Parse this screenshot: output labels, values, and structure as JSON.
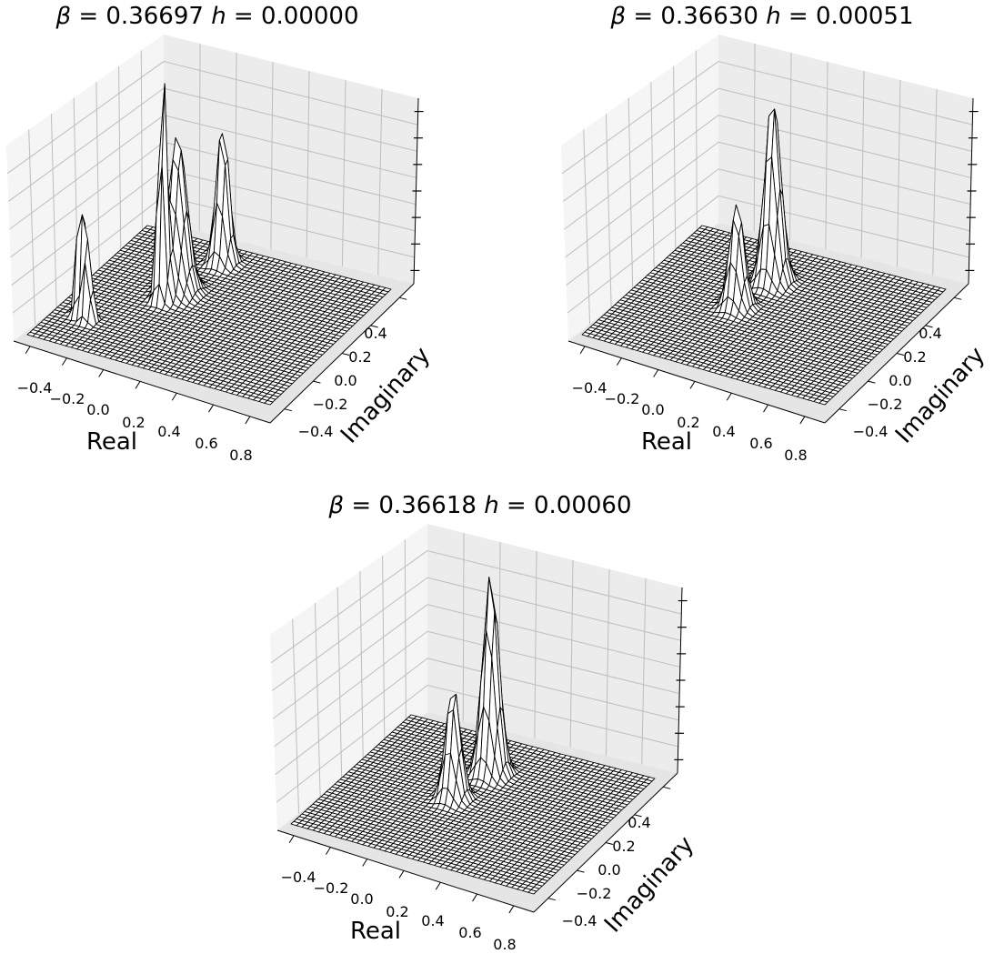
{
  "chart_data": [
    {
      "type": "surface",
      "title_parts": {
        "beta_symbol": "β",
        "beta_value": "= 0.36697",
        "h_symbol": "h",
        "h_value": "= 0.00000"
      },
      "xlabel": "Real",
      "ylabel": "Imaginary",
      "xticks": [
        "−0.4",
        "−0.2",
        "0.0",
        "0.2",
        "0.4",
        "0.6",
        "0.8"
      ],
      "yticks": [
        "−0.4",
        "−0.2",
        "0.0",
        "0.2",
        "0.4"
      ],
      "xlim": [
        -0.5,
        0.85
      ],
      "ylim": [
        -0.5,
        0.55
      ],
      "zticks_labeled": false,
      "peaks": [
        {
          "x": -0.36,
          "y": -0.25,
          "height": 1.0,
          "width": 0.018
        },
        {
          "x": -0.31,
          "y": -0.27,
          "height": 0.58,
          "width": 0.018
        },
        {
          "x": -0.08,
          "y": 0.02,
          "height": 1.55,
          "width": 0.02
        },
        {
          "x": -0.06,
          "y": 0.12,
          "height": 1.05,
          "width": 0.045
        },
        {
          "x": 0.0,
          "y": 0.42,
          "height": 0.95,
          "width": 0.03
        }
      ]
    },
    {
      "type": "surface",
      "title_parts": {
        "beta_symbol": "β",
        "beta_value": "= 0.36630",
        "h_symbol": "h",
        "h_value": "= 0.00051"
      },
      "xlabel": "Real",
      "ylabel": "Imaginary",
      "xticks": [
        "−0.4",
        "−0.2",
        "0.0",
        "0.2",
        "0.4",
        "0.6",
        "0.8"
      ],
      "yticks": [
        "−0.4",
        "−0.2",
        "0.0",
        "0.2",
        "0.4"
      ],
      "xlim": [
        -0.5,
        0.85
      ],
      "ylim": [
        -0.5,
        0.55
      ],
      "zticks_labeled": false,
      "peaks": [
        {
          "x": 0.03,
          "y": 0.02,
          "height": 0.7,
          "width": 0.035
        },
        {
          "x": 0.07,
          "y": 0.27,
          "height": 1.25,
          "width": 0.038
        }
      ]
    },
    {
      "type": "surface",
      "title_parts": {
        "beta_symbol": "β",
        "beta_value": "= 0.36618",
        "h_symbol": "h",
        "h_value": "= 0.00060"
      },
      "xlabel": "Real",
      "ylabel": "Imaginary",
      "xticks": [
        "−0.4",
        "−0.2",
        "0.0",
        "0.2",
        "0.4",
        "0.6",
        "0.8"
      ],
      "yticks": [
        "−0.4",
        "−0.2",
        "0.0",
        "0.2",
        "0.4"
      ],
      "xlim": [
        -0.5,
        0.85
      ],
      "ylim": [
        -0.5,
        0.55
      ],
      "zticks_labeled": false,
      "peaks": [
        {
          "x": 0.07,
          "y": 0.02,
          "height": 0.75,
          "width": 0.035
        },
        {
          "x": 0.12,
          "y": 0.27,
          "height": 1.35,
          "width": 0.038
        }
      ]
    }
  ],
  "colors": {
    "pane_light": "#f5f5f5",
    "pane_mid": "#ececec",
    "pane_dark": "#e5e5e5",
    "grid": "#bdbdbd",
    "surface_face": "#ffffff",
    "surface_edge": "#000000"
  }
}
